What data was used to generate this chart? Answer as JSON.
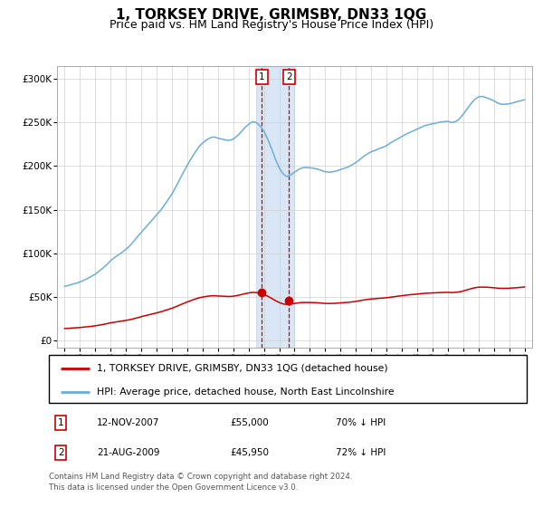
{
  "title": "1, TORKSEY DRIVE, GRIMSBY, DN33 1QG",
  "subtitle": "Price paid vs. HM Land Registry's House Price Index (HPI)",
  "title_fontsize": 11,
  "subtitle_fontsize": 9,
  "yticks": [
    0,
    50000,
    100000,
    150000,
    200000,
    250000,
    300000
  ],
  "ytick_labels": [
    "£0",
    "£50K",
    "£100K",
    "£150K",
    "£200K",
    "£250K",
    "£300K"
  ],
  "ylim": [
    -8000,
    315000
  ],
  "xlim_start": 1994.5,
  "xlim_end": 2025.5,
  "sale1_x": 2007.87,
  "sale1_y": 55000,
  "sale2_x": 2009.64,
  "sale2_y": 45950,
  "shade_x1": 2007.5,
  "shade_x2": 2009.95,
  "legend_entries": [
    "1, TORKSEY DRIVE, GRIMSBY, DN33 1QG (detached house)",
    "HPI: Average price, detached house, North East Lincolnshire"
  ],
  "table_rows": [
    {
      "num": "1",
      "date": "12-NOV-2007",
      "price": "£55,000",
      "hpi": "70% ↓ HPI"
    },
    {
      "num": "2",
      "date": "21-AUG-2009",
      "price": "£45,950",
      "hpi": "72% ↓ HPI"
    }
  ],
  "footer_text": "Contains HM Land Registry data © Crown copyright and database right 2024.\nThis data is licensed under the Open Government Licence v3.0.",
  "hpi_color": "#6baed6",
  "sale_color": "#cc0000",
  "shade_color": "#c5d9f1",
  "grid_color": "#d0d0d0",
  "background_color": "#ffffff",
  "hpi_data_years": [
    1995.0,
    1995.25,
    1995.5,
    1995.75,
    1996.0,
    1996.25,
    1996.5,
    1996.75,
    1997.0,
    1997.25,
    1997.5,
    1997.75,
    1998.0,
    1998.25,
    1998.5,
    1998.75,
    1999.0,
    1999.25,
    1999.5,
    1999.75,
    2000.0,
    2000.25,
    2000.5,
    2000.75,
    2001.0,
    2001.25,
    2001.5,
    2001.75,
    2002.0,
    2002.25,
    2002.5,
    2002.75,
    2003.0,
    2003.25,
    2003.5,
    2003.75,
    2004.0,
    2004.25,
    2004.5,
    2004.75,
    2005.0,
    2005.25,
    2005.5,
    2005.75,
    2006.0,
    2006.25,
    2006.5,
    2006.75,
    2007.0,
    2007.25,
    2007.5,
    2007.75,
    2008.0,
    2008.25,
    2008.5,
    2008.75,
    2009.0,
    2009.25,
    2009.5,
    2009.75,
    2010.0,
    2010.25,
    2010.5,
    2010.75,
    2011.0,
    2011.25,
    2011.5,
    2011.75,
    2012.0,
    2012.25,
    2012.5,
    2012.75,
    2013.0,
    2013.25,
    2013.5,
    2013.75,
    2014.0,
    2014.25,
    2014.5,
    2014.75,
    2015.0,
    2015.25,
    2015.5,
    2015.75,
    2016.0,
    2016.25,
    2016.5,
    2016.75,
    2017.0,
    2017.25,
    2017.5,
    2017.75,
    2018.0,
    2018.25,
    2018.5,
    2018.75,
    2019.0,
    2019.25,
    2019.5,
    2019.75,
    2020.0,
    2020.25,
    2020.5,
    2020.75,
    2021.0,
    2021.25,
    2021.5,
    2021.75,
    2022.0,
    2022.25,
    2022.5,
    2022.75,
    2023.0,
    2023.25,
    2023.5,
    2023.75,
    2024.0,
    2024.25,
    2024.5,
    2024.75,
    2025.0
  ],
  "hpi_data_vals": [
    62000,
    63000,
    64500,
    65500,
    67000,
    69000,
    71000,
    73500,
    76000,
    79500,
    83000,
    87000,
    91500,
    95000,
    98000,
    101000,
    104500,
    108500,
    113500,
    119000,
    124000,
    129000,
    134000,
    139000,
    144000,
    149000,
    155000,
    161500,
    168000,
    176000,
    184500,
    193000,
    201000,
    208500,
    215500,
    222000,
    226500,
    230000,
    232500,
    233500,
    232000,
    231000,
    230000,
    229500,
    231000,
    234500,
    239000,
    244000,
    248000,
    251000,
    250000,
    246000,
    240000,
    231000,
    220000,
    208000,
    198000,
    191000,
    188000,
    190000,
    193000,
    196000,
    198000,
    198500,
    198000,
    197500,
    196500,
    195000,
    193500,
    193000,
    193500,
    194500,
    196000,
    197500,
    199000,
    201500,
    204000,
    207500,
    211000,
    214000,
    216500,
    218000,
    220000,
    221500,
    223500,
    226500,
    229000,
    231500,
    234000,
    236500,
    238500,
    240500,
    242500,
    244500,
    246500,
    247500,
    248500,
    249500,
    250500,
    251000,
    251500,
    250000,
    251000,
    254000,
    259500,
    265500,
    271500,
    276500,
    279500,
    280000,
    278500,
    277000,
    275000,
    272500,
    271000,
    271000,
    271500,
    272500,
    274000,
    275000,
    276000
  ],
  "sale_hpi_data_years": [
    1995.0,
    1995.25,
    1995.5,
    1995.75,
    1996.0,
    1996.25,
    1996.5,
    1996.75,
    1997.0,
    1997.25,
    1997.5,
    1997.75,
    1998.0,
    1998.25,
    1998.5,
    1998.75,
    1999.0,
    1999.25,
    1999.5,
    1999.75,
    2000.0,
    2000.25,
    2000.5,
    2000.75,
    2001.0,
    2001.25,
    2001.5,
    2001.75,
    2002.0,
    2002.25,
    2002.5,
    2002.75,
    2003.0,
    2003.25,
    2003.5,
    2003.75,
    2004.0,
    2004.25,
    2004.5,
    2004.75,
    2005.0,
    2005.25,
    2005.5,
    2005.75,
    2006.0,
    2006.25,
    2006.5,
    2006.75,
    2007.0,
    2007.25,
    2007.5,
    2007.75,
    2008.0,
    2008.25,
    2008.5,
    2008.75,
    2009.0,
    2009.25,
    2009.5,
    2009.75,
    2010.0,
    2010.25,
    2010.5,
    2010.75,
    2011.0,
    2011.25,
    2011.5,
    2011.75,
    2012.0,
    2012.25,
    2012.5,
    2012.75,
    2013.0,
    2013.25,
    2013.5,
    2013.75,
    2014.0,
    2014.25,
    2014.5,
    2014.75,
    2015.0,
    2015.25,
    2015.5,
    2015.75,
    2016.0,
    2016.25,
    2016.5,
    2016.75,
    2017.0,
    2017.25,
    2017.5,
    2017.75,
    2018.0,
    2018.25,
    2018.5,
    2018.75,
    2019.0,
    2019.25,
    2019.5,
    2019.75,
    2020.0,
    2020.25,
    2020.5,
    2020.75,
    2021.0,
    2021.25,
    2021.5,
    2021.75,
    2022.0,
    2022.25,
    2022.5,
    2022.75,
    2023.0,
    2023.25,
    2023.5,
    2023.75,
    2024.0,
    2024.25,
    2024.5,
    2024.75,
    2025.0
  ],
  "sale_hpi_data_vals": [
    13600,
    13800,
    14100,
    14400,
    14700,
    15200,
    15600,
    16100,
    16700,
    17400,
    18200,
    19100,
    20100,
    20800,
    21500,
    22200,
    22900,
    23700,
    24800,
    25900,
    27200,
    28300,
    29400,
    30400,
    31500,
    32700,
    34000,
    35400,
    36800,
    38600,
    40500,
    42300,
    44100,
    45700,
    47300,
    48700,
    49700,
    50400,
    51000,
    51200,
    50900,
    50700,
    50500,
    50300,
    50700,
    51400,
    52400,
    53500,
    54400,
    55000,
    54800,
    53900,
    52600,
    50700,
    48200,
    45600,
    43400,
    41800,
    41200,
    41600,
    42300,
    43000,
    43400,
    43500,
    43400,
    43300,
    43100,
    42700,
    42400,
    42300,
    42400,
    42600,
    43000,
    43300,
    43600,
    44100,
    44700,
    45500,
    46300,
    46900,
    47500,
    47800,
    48200,
    48500,
    48900,
    49500,
    50100,
    50700,
    51200,
    51800,
    52300,
    52700,
    53100,
    53600,
    54000,
    54200,
    54400,
    54600,
    54800,
    55000,
    55100,
    54800,
    55100,
    55600,
    56600,
    57900,
    59200,
    60300,
    61000,
    61100,
    61000,
    60700,
    60300,
    59900,
    59700,
    59700,
    59800,
    60100,
    60400,
    60800,
    61200
  ]
}
